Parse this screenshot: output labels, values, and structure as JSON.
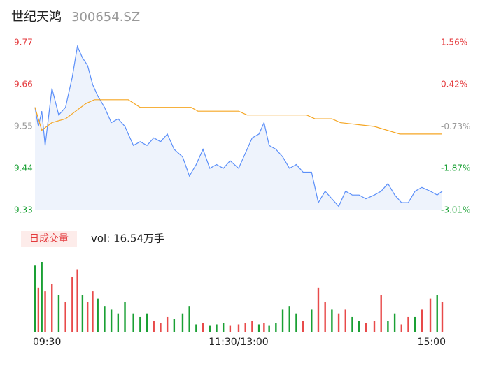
{
  "chart_data": [
    {
      "type": "line",
      "title": "世纪天鸿",
      "subtitle": "300654.SZ",
      "xlim": [
        0,
        240
      ],
      "xticks": [
        {
          "value": 0,
          "label": "09:30"
        },
        {
          "value": 120,
          "label": "11:30/13:00"
        },
        {
          "value": 240,
          "label": "15:00"
        }
      ],
      "ylim": [
        9.33,
        9.77
      ],
      "yticks": [
        9.77,
        9.66,
        9.55,
        9.44,
        9.33
      ],
      "y2lim": [
        -3.01,
        1.56
      ],
      "y2ticks": [
        {
          "value": 1.56,
          "label": "1.56%"
        },
        {
          "value": 0.42,
          "label": "0.42%"
        },
        {
          "value": -0.73,
          "label": "-0.73%"
        },
        {
          "value": -1.87,
          "label": "-1.87%"
        },
        {
          "value": -3.01,
          "label": "-3.01%"
        }
      ],
      "ytick_colors": [
        "#e4393c",
        "#e4393c",
        "#999999",
        "#1aa034",
        "#1aa034"
      ],
      "area_color": "#eef3fc",
      "series": [
        {
          "color": "#5b8ff9",
          "x": [
            0,
            2,
            4,
            6,
            10,
            14,
            18,
            22,
            25,
            28,
            31,
            34,
            37,
            41,
            45,
            49,
            53,
            58,
            62,
            66,
            70,
            74,
            78,
            82,
            87,
            91,
            95,
            99,
            103,
            107,
            111,
            115,
            120,
            124,
            128,
            132,
            135,
            138,
            142,
            146,
            150,
            154,
            158,
            163,
            167,
            171,
            175,
            179,
            183,
            187,
            191,
            195,
            200,
            204,
            208,
            212,
            216,
            220,
            224,
            228,
            233,
            237,
            240
          ],
          "values": [
            9.6,
            9.55,
            9.59,
            9.5,
            9.65,
            9.58,
            9.6,
            9.68,
            9.76,
            9.73,
            9.71,
            9.66,
            9.63,
            9.6,
            9.56,
            9.57,
            9.55,
            9.5,
            9.51,
            9.5,
            9.52,
            9.51,
            9.53,
            9.49,
            9.47,
            9.42,
            9.45,
            9.49,
            9.44,
            9.45,
            9.44,
            9.46,
            9.44,
            9.48,
            9.52,
            9.53,
            9.56,
            9.5,
            9.49,
            9.47,
            9.44,
            9.45,
            9.43,
            9.43,
            9.35,
            9.38,
            9.36,
            9.34,
            9.38,
            9.37,
            9.37,
            9.36,
            9.37,
            9.38,
            9.4,
            9.37,
            9.35,
            9.35,
            9.38,
            9.39,
            9.38,
            9.37,
            9.38
          ]
        },
        {
          "color": "#f5a623",
          "x": [
            0,
            4,
            10,
            18,
            24,
            30,
            35,
            55,
            62,
            92,
            96,
            120,
            125,
            160,
            165,
            175,
            180,
            200,
            215,
            240
          ],
          "values": [
            9.6,
            9.54,
            9.56,
            9.57,
            9.59,
            9.61,
            9.62,
            9.62,
            9.6,
            9.6,
            9.59,
            9.59,
            9.58,
            9.58,
            9.57,
            9.57,
            9.56,
            9.55,
            9.53,
            9.53
          ]
        }
      ]
    },
    {
      "type": "bar",
      "label": "日成交量",
      "info": "vol: 16.54万手",
      "xlim": [
        0,
        240
      ],
      "x": [
        0,
        2,
        4,
        6,
        10,
        14,
        18,
        22,
        25,
        28,
        31,
        34,
        37,
        41,
        45,
        49,
        53,
        58,
        62,
        66,
        70,
        74,
        78,
        82,
        87,
        91,
        95,
        99,
        103,
        107,
        111,
        115,
        120,
        124,
        128,
        132,
        135,
        138,
        142,
        146,
        150,
        154,
        158,
        163,
        167,
        171,
        175,
        179,
        183,
        187,
        191,
        195,
        200,
        204,
        208,
        212,
        216,
        220,
        224,
        228,
        233,
        237,
        240
      ],
      "values": [
        90,
        60,
        95,
        55,
        65,
        50,
        40,
        75,
        85,
        50,
        40,
        55,
        45,
        35,
        30,
        25,
        40,
        25,
        20,
        25,
        15,
        12,
        20,
        18,
        25,
        35,
        10,
        12,
        8,
        10,
        12,
        8,
        10,
        12,
        15,
        10,
        12,
        8,
        12,
        30,
        35,
        25,
        15,
        30,
        60,
        40,
        30,
        25,
        30,
        20,
        15,
        12,
        15,
        50,
        15,
        25,
        10,
        20,
        20,
        30,
        45,
        50,
        40
      ],
      "colors": [
        "#1aa034",
        "#e84a4a",
        "#1aa034",
        "#e84a4a",
        "#e84a4a",
        "#1aa034",
        "#e84a4a",
        "#e84a4a",
        "#e84a4a",
        "#1aa034",
        "#e84a4a",
        "#e84a4a",
        "#1aa034",
        "#1aa034",
        "#1aa034",
        "#1aa034",
        "#1aa034",
        "#1aa034",
        "#1aa034",
        "#1aa034",
        "#e84a4a",
        "#e84a4a",
        "#e84a4a",
        "#1aa034",
        "#1aa034",
        "#1aa034",
        "#1aa034",
        "#e84a4a",
        "#1aa034",
        "#1aa034",
        "#1aa034",
        "#e84a4a",
        "#e84a4a",
        "#e84a4a",
        "#e84a4a",
        "#1aa034",
        "#e84a4a",
        "#1aa034",
        "#1aa034",
        "#1aa034",
        "#1aa034",
        "#1aa034",
        "#e84a4a",
        "#1aa034",
        "#e84a4a",
        "#e84a4a",
        "#1aa034",
        "#e84a4a",
        "#e84a4a",
        "#1aa034",
        "#1aa034",
        "#e84a4a",
        "#e84a4a",
        "#e84a4a",
        "#1aa034",
        "#1aa034",
        "#e84a4a",
        "#e84a4a",
        "#1aa034",
        "#e84a4a",
        "#e84a4a",
        "#1aa034",
        "#e84a4a"
      ]
    }
  ]
}
